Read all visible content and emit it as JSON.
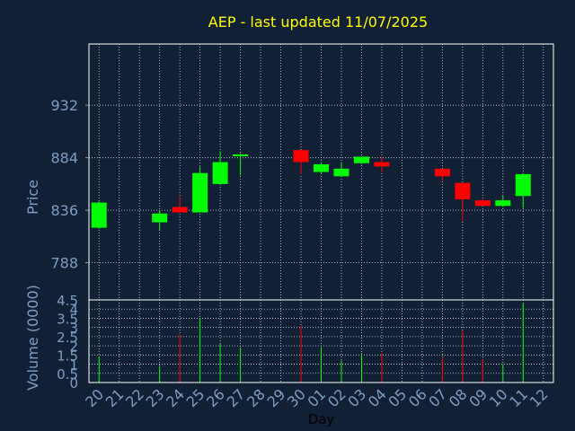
{
  "chart_data": {
    "type": "candlestick",
    "title": "AEP - last updated 11/07/2025",
    "colors": {
      "background": "#112035",
      "title": "#ffff00",
      "axis_text": "#7f9dc2",
      "grid": "#d0d8e0",
      "up": "#00ff00",
      "down": "#ff0000"
    },
    "price_panel": {
      "ylabel": "Price",
      "ylim": [
        754,
        988
      ],
      "yticks": [
        788,
        836,
        884,
        932
      ]
    },
    "volume_panel": {
      "ylabel": "Volume (0000)",
      "ylim": [
        0,
        4.5
      ],
      "yticks": [
        0,
        0.5,
        1,
        1.5,
        2,
        2.5,
        3,
        3.5,
        4,
        4.5
      ],
      "ytick_labels": [
        "0",
        "0.5",
        "1",
        "1.5",
        "2",
        "2.5",
        "3",
        "3.5",
        "4",
        "4.5"
      ]
    },
    "xlabel": "Day",
    "x_ticks": [
      "20",
      "21",
      "22",
      "23",
      "24",
      "25",
      "26",
      "27",
      "28",
      "29",
      "30",
      "01",
      "02",
      "03",
      "04",
      "05",
      "06",
      "07",
      "08",
      "09",
      "10",
      "11",
      "12"
    ],
    "candles": [
      {
        "day": "20",
        "open": 820,
        "high": 844,
        "low": 819,
        "close": 843,
        "volume": 1.4
      },
      {
        "day": "23",
        "open": 825,
        "high": 836,
        "low": 818,
        "close": 833,
        "volume": 0.9
      },
      {
        "day": "24",
        "open": 839,
        "high": 849,
        "low": 834,
        "close": 834,
        "volume": 2.6
      },
      {
        "day": "25",
        "open": 834,
        "high": 876,
        "low": 834,
        "close": 870,
        "volume": 3.5
      },
      {
        "day": "26",
        "open": 860,
        "high": 890,
        "low": 859,
        "close": 880,
        "volume": 2.1
      },
      {
        "day": "27",
        "open": 886,
        "high": 888,
        "low": 868,
        "close": 887,
        "volume": 1.9
      },
      {
        "day": "30",
        "open": 891,
        "high": 891,
        "low": 869,
        "close": 880,
        "volume": 3.1
      },
      {
        "day": "01",
        "open": 871,
        "high": 880,
        "low": 869,
        "close": 878,
        "volume": 1.9
      },
      {
        "day": "02",
        "open": 867,
        "high": 880,
        "low": 867,
        "close": 874,
        "volume": 1.2
      },
      {
        "day": "03",
        "open": 879,
        "high": 885,
        "low": 878,
        "close": 885,
        "volume": 1.6
      },
      {
        "day": "04",
        "open": 880,
        "high": 885,
        "low": 871,
        "close": 876,
        "volume": 1.6
      },
      {
        "day": "07",
        "open": 874,
        "high": 874,
        "low": 863,
        "close": 867,
        "volume": 1.4
      },
      {
        "day": "08",
        "open": 861,
        "high": 861,
        "low": 826,
        "close": 846,
        "volume": 2.8
      },
      {
        "day": "09",
        "open": 845,
        "high": 846,
        "low": 840,
        "close": 840,
        "volume": 1.3
      },
      {
        "day": "10",
        "open": 840,
        "high": 849,
        "low": 839,
        "close": 845,
        "volume": 1.0
      },
      {
        "day": "11",
        "open": 849,
        "high": 870,
        "low": 838,
        "close": 869,
        "volume": 4.3
      }
    ]
  }
}
